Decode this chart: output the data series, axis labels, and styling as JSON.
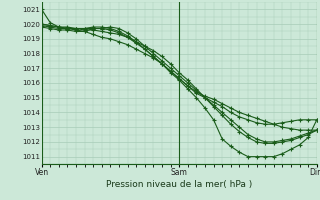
{
  "xlabel": "Pression niveau de la mer( hPa )",
  "bg_color": "#cce8d8",
  "grid_color": "#a8ccb8",
  "line_color": "#1a5c1a",
  "ylim": [
    1010.5,
    1021.5
  ],
  "yticks": [
    1011,
    1012,
    1013,
    1014,
    1015,
    1016,
    1017,
    1018,
    1019,
    1020,
    1021
  ],
  "xtick_positions": [
    0,
    48,
    96
  ],
  "xtick_labels": [
    "Ven",
    "Sam",
    "Dim"
  ],
  "x_total": 96,
  "series": [
    [
      0,
      1021.0,
      3,
      1020.1,
      6,
      1019.8,
      9,
      1019.7,
      12,
      1019.6,
      15,
      1019.5,
      18,
      1019.3,
      21,
      1019.1,
      24,
      1019.0,
      27,
      1018.8,
      30,
      1018.6,
      33,
      1018.3,
      36,
      1018.0,
      39,
      1017.7,
      42,
      1017.3,
      45,
      1016.7,
      48,
      1016.2,
      51,
      1015.6,
      54,
      1015.0,
      57,
      1014.3,
      60,
      1013.5,
      63,
      1012.2,
      66,
      1011.7,
      69,
      1011.3,
      72,
      1011.0,
      75,
      1011.0,
      78,
      1011.0,
      81,
      1011.0,
      84,
      1011.2,
      87,
      1011.5,
      90,
      1011.8,
      93,
      1012.3,
      96,
      1013.5
    ],
    [
      0,
      1020.0,
      3,
      1019.9,
      6,
      1019.8,
      9,
      1019.8,
      12,
      1019.7,
      15,
      1019.6,
      18,
      1019.6,
      21,
      1019.5,
      24,
      1019.4,
      27,
      1019.3,
      30,
      1019.1,
      33,
      1018.8,
      36,
      1018.5,
      39,
      1018.2,
      42,
      1017.8,
      45,
      1017.3,
      48,
      1016.7,
      51,
      1016.2,
      54,
      1015.6,
      57,
      1015.0,
      60,
      1014.4,
      63,
      1013.8,
      66,
      1013.2,
      69,
      1012.7,
      72,
      1012.3,
      75,
      1012.0,
      78,
      1011.9,
      81,
      1011.9,
      84,
      1012.0,
      87,
      1012.1,
      90,
      1012.3,
      93,
      1012.5,
      96,
      1012.8
    ],
    [
      0,
      1019.8,
      3,
      1019.7,
      6,
      1019.6,
      9,
      1019.6,
      12,
      1019.5,
      15,
      1019.5,
      18,
      1019.7,
      21,
      1019.7,
      24,
      1019.8,
      27,
      1019.7,
      30,
      1019.4,
      33,
      1019.0,
      36,
      1018.5,
      39,
      1018.0,
      42,
      1017.5,
      45,
      1017.0,
      48,
      1016.5,
      51,
      1016.0,
      54,
      1015.5,
      57,
      1015.0,
      60,
      1014.5,
      63,
      1014.0,
      66,
      1013.5,
      69,
      1013.0,
      72,
      1012.5,
      75,
      1012.2,
      78,
      1012.0,
      81,
      1012.0,
      84,
      1012.1,
      87,
      1012.2,
      90,
      1012.4,
      93,
      1012.6,
      96,
      1012.8
    ],
    [
      0,
      1020.0,
      3,
      1019.9,
      6,
      1019.8,
      9,
      1019.7,
      12,
      1019.7,
      15,
      1019.7,
      18,
      1019.8,
      21,
      1019.8,
      24,
      1019.7,
      27,
      1019.5,
      30,
      1019.2,
      33,
      1018.8,
      36,
      1018.3,
      39,
      1017.8,
      42,
      1017.3,
      45,
      1016.8,
      48,
      1016.3,
      51,
      1015.8,
      54,
      1015.3,
      57,
      1015.0,
      60,
      1014.7,
      63,
      1014.4,
      66,
      1014.0,
      69,
      1013.7,
      72,
      1013.5,
      75,
      1013.3,
      78,
      1013.2,
      81,
      1013.2,
      84,
      1013.3,
      87,
      1013.4,
      90,
      1013.5,
      93,
      1013.5,
      96,
      1013.5
    ],
    [
      0,
      1019.9,
      3,
      1019.8,
      6,
      1019.7,
      9,
      1019.7,
      12,
      1019.7,
      15,
      1019.7,
      18,
      1019.7,
      21,
      1019.7,
      24,
      1019.6,
      27,
      1019.4,
      30,
      1019.1,
      33,
      1018.7,
      36,
      1018.3,
      39,
      1017.8,
      42,
      1017.3,
      45,
      1016.8,
      48,
      1016.3,
      51,
      1015.8,
      54,
      1015.4,
      57,
      1015.1,
      60,
      1014.9,
      63,
      1014.6,
      66,
      1014.3,
      69,
      1014.0,
      72,
      1013.8,
      75,
      1013.6,
      78,
      1013.4,
      81,
      1013.2,
      84,
      1013.0,
      87,
      1012.9,
      90,
      1012.8,
      93,
      1012.8,
      96,
      1012.8
    ]
  ]
}
